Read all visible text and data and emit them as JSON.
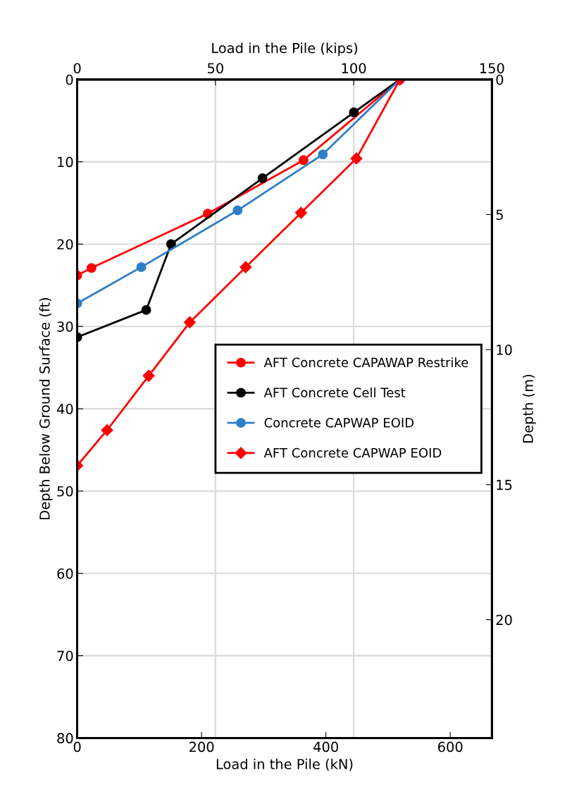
{
  "chart_data": {
    "type": "line",
    "xlabel": "Load in the Pile (kN)",
    "ylabel": "Depth Below Ground Surface (ft)",
    "x2label": "Load in the Pile (kips)",
    "y2label": "Depth (m)",
    "xlim": [
      0,
      667
    ],
    "xticks": [
      0,
      200,
      400,
      600
    ],
    "ylim": [
      80,
      0
    ],
    "yticks": [
      0,
      10,
      20,
      30,
      40,
      50,
      60,
      70,
      80
    ],
    "x2lim": [
      0,
      150
    ],
    "x2ticks": [
      0,
      50,
      100,
      150
    ],
    "y2lim": [
      24.38,
      0
    ],
    "y2ticks": [
      0,
      5,
      10,
      15,
      20
    ],
    "grid": true,
    "legend": "right",
    "line_style": "solid",
    "series": [
      {
        "name": "AFT Concrete CAPAWAP Restrike",
        "color": "#ff0000",
        "marker": "circle",
        "x": [
          519,
          364,
          210,
          23,
          0
        ],
        "values": [
          0,
          9.8,
          16.3,
          22.9,
          23.8
        ]
      },
      {
        "name": "AFT Concrete Cell Test",
        "color": "#000000",
        "marker": "circle",
        "x": [
          519,
          445,
          298,
          151,
          111,
          0
        ],
        "values": [
          0,
          4,
          12,
          20,
          28,
          31.3
        ]
      },
      {
        "name": "Concrete CAPWAP EOID",
        "color": "#2e7dc8",
        "marker": "circle",
        "x": [
          519,
          395,
          258,
          103,
          0
        ],
        "values": [
          0,
          9.1,
          15.9,
          22.8,
          27.2
        ]
      },
      {
        "name": "AFT Concrete CAPWAP EOID",
        "color": "#ff0000",
        "marker": "diamond",
        "x": [
          519,
          449,
          360,
          271,
          181,
          115,
          48,
          0
        ],
        "values": [
          0,
          9.6,
          16.2,
          22.8,
          29.5,
          36,
          42.6,
          46.9
        ]
      }
    ]
  }
}
